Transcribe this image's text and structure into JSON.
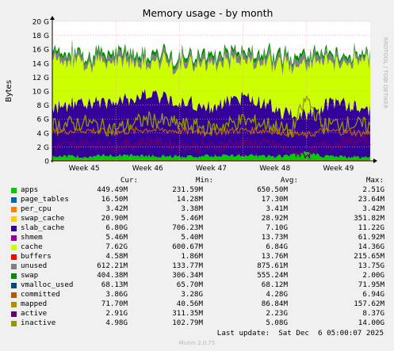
{
  "chart_data": {
    "type": "area",
    "title": "Memory usage - by month",
    "ylabel": "Bytes",
    "side_label": "RRDTOOL / TOBI OETIKER",
    "ylim": [
      0,
      20
    ],
    "y_ticks": [
      "0",
      "2 G",
      "4 G",
      "6 G",
      "8 G",
      "10 G",
      "12 G",
      "14 G",
      "16 G",
      "18 G",
      "20 G"
    ],
    "x_ticks": [
      "Week 45",
      "Week 46",
      "Week 47",
      "Week 48",
      "Week 49"
    ],
    "grid": true,
    "legend_columns": [
      "Cur:",
      "Min:",
      "Avg:",
      "Max:"
    ],
    "legend_placement": "bottom",
    "series": [
      {
        "name": "apps",
        "color": "#00cc00",
        "cur": "449.49M",
        "min": "231.59M",
        "avg": "650.50M",
        "max": "2.51G"
      },
      {
        "name": "page_tables",
        "color": "#0066b3",
        "cur": "16.50M",
        "min": "14.28M",
        "avg": "17.30M",
        "max": "23.64M"
      },
      {
        "name": "per_cpu",
        "color": "#ff8000",
        "cur": "3.42M",
        "min": "3.38M",
        "avg": "3.41M",
        "max": "3.42M"
      },
      {
        "name": "swap_cache",
        "color": "#ffcc00",
        "cur": "20.90M",
        "min": "5.46M",
        "avg": "28.92M",
        "max": "351.82M"
      },
      {
        "name": "slab_cache",
        "color": "#330099",
        "cur": "6.80G",
        "min": "706.23M",
        "avg": "7.10G",
        "max": "11.22G"
      },
      {
        "name": "shmem",
        "color": "#990099",
        "cur": "5.46M",
        "min": "5.40M",
        "avg": "13.73M",
        "max": "61.92M"
      },
      {
        "name": "cache",
        "color": "#ccff00",
        "cur": "7.62G",
        "min": "600.67M",
        "avg": "6.84G",
        "max": "14.36G"
      },
      {
        "name": "buffers",
        "color": "#ff0000",
        "cur": "4.58M",
        "min": "1.86M",
        "avg": "13.76M",
        "max": "215.65M"
      },
      {
        "name": "unused",
        "color": "#808080",
        "cur": "612.21M",
        "min": "133.77M",
        "avg": "875.61M",
        "max": "13.75G"
      },
      {
        "name": "swap",
        "color": "#008f00",
        "cur": "404.38M",
        "min": "306.34M",
        "avg": "555.24M",
        "max": "2.00G"
      },
      {
        "name": "vmalloc_used",
        "color": "#00487d",
        "cur": "68.13M",
        "min": "65.70M",
        "avg": "68.12M",
        "max": "71.95M"
      },
      {
        "name": "committed",
        "color": "#b35a00",
        "cur": "3.86G",
        "min": "3.28G",
        "avg": "4.28G",
        "max": "6.94G"
      },
      {
        "name": "mapped",
        "color": "#b38f00",
        "cur": "71.70M",
        "min": "40.56M",
        "avg": "86.84M",
        "max": "157.62M"
      },
      {
        "name": "active",
        "color": "#6b006b",
        "cur": "2.91G",
        "min": "311.35M",
        "avg": "2.23G",
        "max": "8.37G"
      },
      {
        "name": "inactive",
        "color": "#8f9900",
        "cur": "4.98G",
        "min": "102.79M",
        "avg": "5.08G",
        "max": "14.00G"
      }
    ],
    "profile_x": [
      0,
      0.1,
      0.2,
      0.3,
      0.4,
      0.5,
      0.6,
      0.7,
      0.75,
      0.8,
      0.85,
      0.9,
      1.0
    ],
    "profiles": {
      "apps": [
        0.7,
        0.6,
        0.8,
        0.7,
        0.6,
        0.7,
        0.8,
        0.6,
        0.8,
        1.2,
        0.7,
        0.6,
        0.5
      ],
      "slab_cache": [
        7.0,
        8.0,
        7.5,
        9.0,
        8.0,
        7.0,
        8.5,
        7.0,
        6.0,
        5.5,
        7.0,
        8.0,
        6.8
      ],
      "cache": [
        7.2,
        5.5,
        6.0,
        4.5,
        5.5,
        6.5,
        5.0,
        6.5,
        7.0,
        7.5,
        6.5,
        5.5,
        7.6
      ],
      "unused": [
        0.8,
        0.7,
        0.9,
        0.8,
        0.7,
        0.8,
        0.9,
        0.8,
        0.8,
        0.9,
        0.8,
        0.7,
        0.6
      ],
      "swap": [
        0.5,
        0.5,
        0.6,
        0.6,
        0.5,
        0.6,
        0.5,
        0.6,
        0.5,
        0.6,
        0.5,
        0.5,
        0.4
      ],
      "committed": [
        4.2,
        4.4,
        4.1,
        4.5,
        4.3,
        4.2,
        4.4,
        4.3,
        4.0,
        3.6,
        4.3,
        4.2,
        3.9
      ],
      "mapped": [
        0.09,
        0.09,
        0.09,
        0.09,
        0.09,
        0.09,
        0.09,
        0.09,
        0.09,
        0.09,
        0.09,
        0.09,
        0.07
      ],
      "active": [
        2.0,
        2.5,
        2.0,
        2.8,
        2.2,
        2.0,
        2.6,
        2.3,
        1.5,
        1.0,
        2.2,
        2.5,
        2.9
      ],
      "inactive": [
        5.0,
        5.5,
        4.5,
        6.0,
        5.2,
        4.6,
        5.8,
        5.0,
        4.0,
        9.0,
        5.0,
        5.4,
        5.0
      ]
    }
  },
  "footer": {
    "last_update": "Last update:  Sat Dec  6 05:00:07 2025",
    "version": "Munin 2.0.75"
  }
}
